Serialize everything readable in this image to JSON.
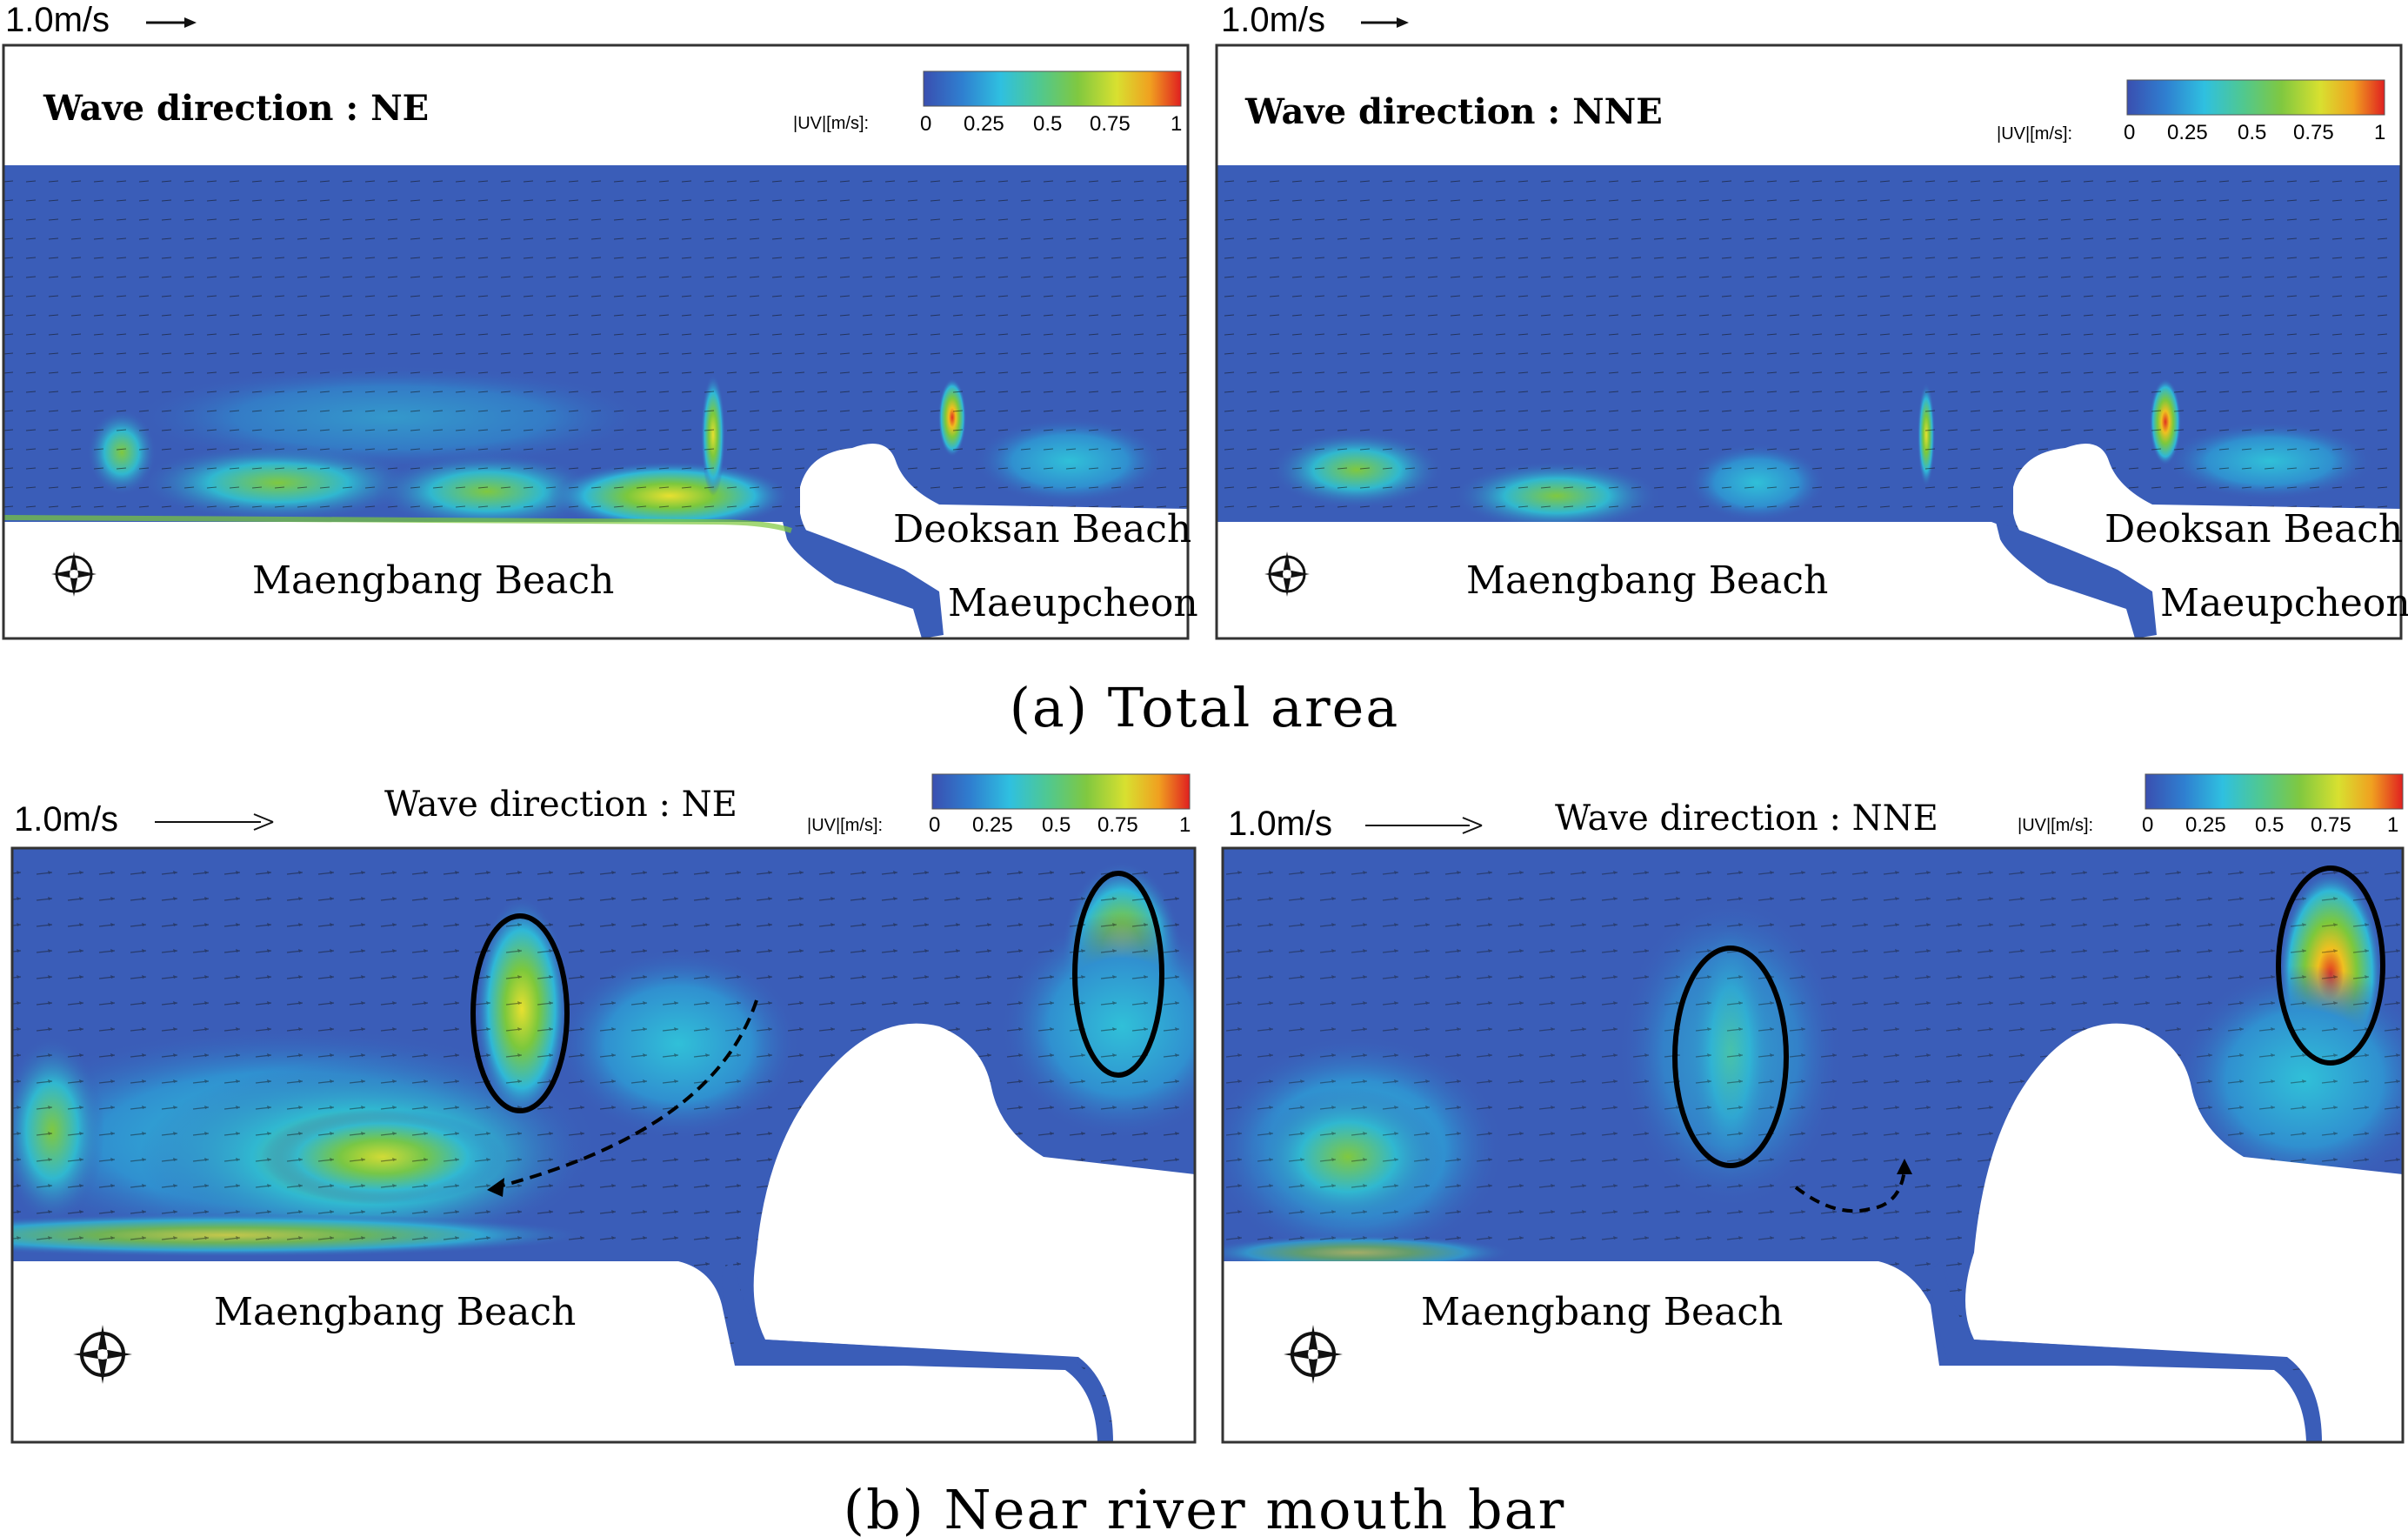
{
  "figure": {
    "caption_a": "(a) Total area",
    "caption_b": "(b) Near river mouth bar"
  },
  "colors": {
    "water_low": "#3a5db8",
    "water_mid": "#2aa8d8",
    "green": "#7cc83c",
    "yellow": "#e8e030",
    "red": "#e03020",
    "land": "#ffffff",
    "frame": "#333333"
  },
  "colorbar": {
    "title": "|UV|[m/s]:",
    "ticks": [
      "0",
      "0.25",
      "0.5",
      "0.75",
      "1"
    ]
  },
  "panels": [
    {
      "id": "a-left",
      "scale_label": "1.0m/s",
      "wave_direction": "Wave direction : NE",
      "places": {
        "beach": "Maengbang Beach",
        "east_beach": "Deoksan Beach",
        "river": "Maeupcheon"
      },
      "compass_icon": "compass-rose-icon"
    },
    {
      "id": "a-right",
      "scale_label": "1.0m/s",
      "wave_direction": "Wave direction : NNE",
      "places": {
        "beach": "Maengbang Beach",
        "east_beach": "Deoksan Beach",
        "river": "Maeupcheon"
      },
      "compass_icon": "compass-rose-icon"
    },
    {
      "id": "b-left",
      "scale_label": "1.0m/s",
      "wave_direction": "Wave direction : NE",
      "places": {
        "beach": "Maengbang Beach"
      },
      "compass_icon": "compass-rose-icon"
    },
    {
      "id": "b-right",
      "scale_label": "1.0m/s",
      "wave_direction": "Wave direction : NNE",
      "places": {
        "beach": "Maengbang Beach"
      },
      "compass_icon": "compass-rose-icon"
    }
  ]
}
